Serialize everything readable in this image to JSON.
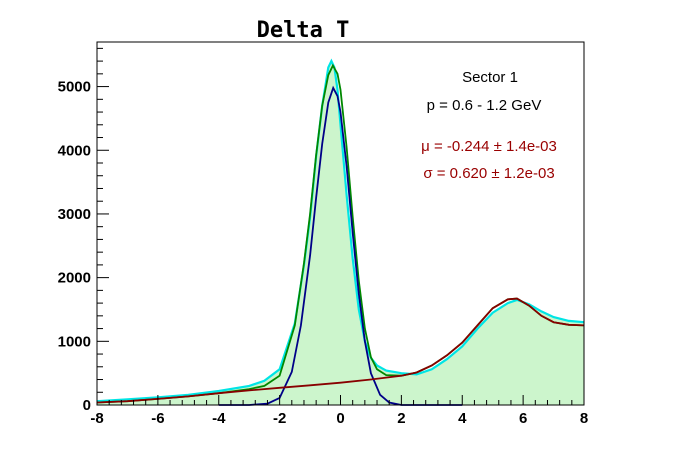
{
  "chart_data": {
    "type": "line",
    "title": "Delta T",
    "xlabel": "",
    "ylabel": "",
    "xlim": [
      -8,
      8
    ],
    "ylim": [
      0,
      5700
    ],
    "xticks": [
      -8,
      -6,
      -4,
      -2,
      0,
      2,
      4,
      6,
      8
    ],
    "xtick_labels": [
      "-8",
      "-6",
      "-4",
      "-2",
      "0",
      "2",
      "4",
      "6",
      "8"
    ],
    "yticks": [
      0,
      1000,
      2000,
      3000,
      4000,
      5000
    ],
    "ytick_labels": [
      "0",
      "1000",
      "2000",
      "3000",
      "4000",
      "5000"
    ],
    "annotations": {
      "sector": "Sector 1",
      "momentum": "p = 0.6 - 1.2 GeV",
      "mu": "μ = -0.244 ± 1.4e-03",
      "sigma": "σ = 0.620 ± 1.2e-03"
    },
    "series": [
      {
        "kind": "histogram",
        "color": "#00e5e5",
        "fill": "#ccf5cc",
        "x": [
          -8.0,
          -7.0,
          -6.0,
          -5.0,
          -4.0,
          -3.0,
          -2.5,
          -2.0,
          -1.5,
          -1.2,
          -1.0,
          -0.8,
          -0.6,
          -0.5,
          -0.4,
          -0.3,
          -0.2,
          -0.1,
          0.0,
          0.2,
          0.4,
          0.6,
          0.8,
          1.0,
          1.2,
          1.5,
          2.0,
          2.5,
          3.0,
          3.5,
          4.0,
          4.5,
          5.0,
          5.5,
          5.8,
          6.2,
          6.6,
          7.0,
          7.5,
          8.0
        ],
        "y": [
          60,
          90,
          120,
          160,
          220,
          300,
          380,
          560,
          1280,
          2200,
          2950,
          3900,
          4700,
          5000,
          5300,
          5400,
          5300,
          4950,
          4400,
          3300,
          2300,
          1500,
          1000,
          740,
          620,
          540,
          500,
          480,
          560,
          720,
          920,
          1200,
          1450,
          1600,
          1650,
          1580,
          1470,
          1380,
          1320,
          1300
        ]
      },
      {
        "kind": "fit",
        "name": "",
        "color": "#008800",
        "x": [
          -8.0,
          -7.0,
          -6.0,
          -5.0,
          -4.0,
          -3.0,
          -2.5,
          -2.0,
          -1.5,
          -1.2,
          -1.0,
          -0.8,
          -0.6,
          -0.4,
          -0.25,
          -0.1,
          0.0,
          0.2,
          0.4,
          0.6,
          0.8,
          1.0,
          1.2,
          1.5,
          2.0,
          2.5,
          3.0,
          3.5,
          4.0,
          4.5,
          5.0,
          5.5,
          5.8,
          6.2,
          6.6,
          7.0,
          7.5,
          8.0
        ],
        "y": [
          40,
          60,
          95,
          135,
          185,
          250,
          300,
          460,
          1250,
          2230,
          3000,
          3920,
          4700,
          5180,
          5330,
          5200,
          4950,
          4050,
          2950,
          1950,
          1200,
          750,
          560,
          470,
          460,
          510,
          620,
          780,
          980,
          1250,
          1520,
          1660,
          1670,
          1560,
          1400,
          1300,
          1260,
          1250
        ]
      },
      {
        "kind": "fit",
        "name": "",
        "color": "#000088",
        "x": [
          -4.0,
          -3.0,
          -2.4,
          -2.0,
          -1.6,
          -1.3,
          -1.0,
          -0.8,
          -0.6,
          -0.4,
          -0.24,
          -0.1,
          0.0,
          0.2,
          0.4,
          0.6,
          0.8,
          1.0,
          1.3,
          1.6,
          2.0,
          2.5,
          3.0,
          4.0
        ],
        "y": [
          0,
          0,
          20,
          110,
          520,
          1250,
          2350,
          3250,
          4100,
          4750,
          4980,
          4850,
          4600,
          3750,
          2700,
          1750,
          1000,
          500,
          160,
          40,
          0,
          0,
          0,
          0
        ]
      },
      {
        "kind": "fit",
        "name": "",
        "color": "#880000",
        "x": [
          -8.0,
          -7.0,
          -6.0,
          -5.0,
          -4.0,
          -3.0,
          -2.0,
          -1.0,
          0.0,
          1.0,
          2.0,
          2.5,
          3.0,
          3.5,
          4.0,
          4.5,
          5.0,
          5.5,
          5.8,
          6.2,
          6.6,
          7.0,
          7.5,
          8.0
        ],
        "y": [
          40,
          60,
          95,
          135,
          185,
          230,
          270,
          310,
          350,
          400,
          460,
          510,
          620,
          780,
          980,
          1250,
          1520,
          1660,
          1670,
          1560,
          1400,
          1300,
          1260,
          1250
        ]
      }
    ]
  }
}
